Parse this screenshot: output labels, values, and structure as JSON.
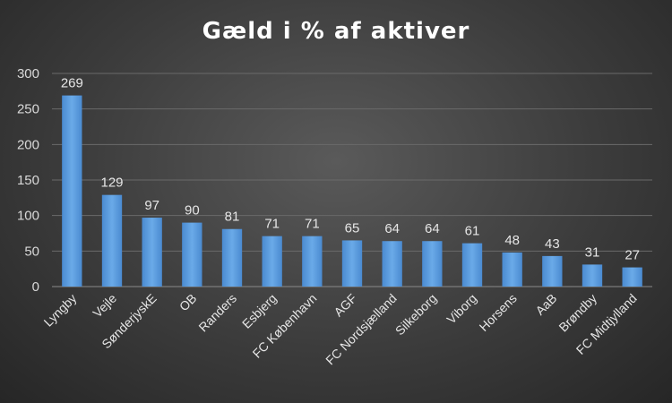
{
  "chart_data": {
    "type": "bar",
    "title": "Gæld i % af aktiver",
    "xlabel": "",
    "ylabel": "",
    "ylim": [
      0,
      300
    ],
    "yticks": [
      0,
      50,
      100,
      150,
      200,
      250,
      300
    ],
    "grid": true,
    "legend": "none",
    "categories": [
      "Lyngby",
      "Vejle",
      "SønderjyskE",
      "OB",
      "Randers",
      "Esbjerg",
      "FC København",
      "AGF",
      "FC Nordsjælland",
      "Silkeborg",
      "Viborg",
      "Horsens",
      "AaB",
      "Brøndby",
      "FC Midtjylland"
    ],
    "values": [
      269,
      129,
      97,
      90,
      81,
      71,
      71,
      65,
      64,
      64,
      61,
      48,
      43,
      31,
      27
    ],
    "bar_color": "#5b9bd5"
  }
}
